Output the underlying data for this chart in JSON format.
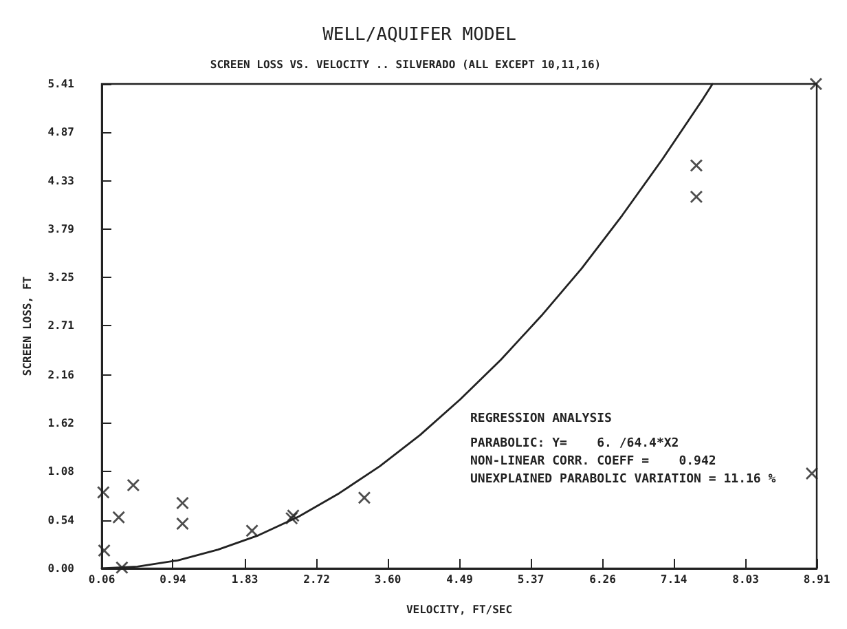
{
  "chart_data": {
    "type": "scatter",
    "title": "WELL/AQUIFER MODEL",
    "subtitle": "SCREEN LOSS VS. VELOCITY .. SILVERADO (ALL EXCEPT 10,11,16)",
    "xlabel": "VELOCITY, FT/SEC",
    "ylabel": "SCREEN LOSS, FT",
    "x": [
      0.09,
      0.08,
      0.27,
      0.31,
      0.45,
      1.06,
      1.06,
      1.92,
      2.43,
      2.41,
      3.31,
      7.42,
      7.42,
      8.85,
      8.9
    ],
    "series": [
      {
        "color": "#222222",
        "marker": "cross",
        "values": [
          0.2,
          0.85,
          0.57,
          0.01,
          0.93,
          0.73,
          0.5,
          0.42,
          0.59,
          0.56,
          0.79,
          4.5,
          4.15,
          1.06,
          5.41
        ]
      },
      {
        "type": "line",
        "color": "#222222",
        "marker": "none",
        "line_style": "solid",
        "x": [
          0.06,
          0.5,
          1,
          1.5,
          2,
          2.5,
          3,
          3.5,
          4,
          4.5,
          5,
          5.5,
          6,
          6.5,
          7,
          7.5,
          7.62
        ],
        "values": [
          0,
          0.02,
          0.09,
          0.21,
          0.37,
          0.58,
          0.84,
          1.14,
          1.49,
          1.89,
          2.33,
          2.82,
          3.35,
          3.94,
          4.57,
          5.24,
          5.41
        ]
      }
    ],
    "xlim": [
      0.06,
      8.91
    ],
    "xticks": [
      0.06,
      0.94,
      1.83,
      2.72,
      {
        "value": 3.6,
        "label": "3.60"
      },
      4.49,
      5.37,
      6.26,
      7.14,
      8.03,
      8.91
    ],
    "ylim": [
      0,
      5.41
    ],
    "yticks": [
      {
        "value": 0,
        "label": "0.00"
      },
      0.54,
      1.08,
      1.62,
      2.16,
      2.71,
      3.25,
      3.79,
      4.33,
      4.87,
      5.41
    ],
    "annotations": [
      "REGRESSION ANALYSIS",
      "PARABOLIC: Y=    6. /64.4*X2",
      "NON-LINEAR CORR. COEFF =    0.942",
      "UNEXPLAINED PARABOLIC VARIATION = 11.16 %"
    ]
  }
}
